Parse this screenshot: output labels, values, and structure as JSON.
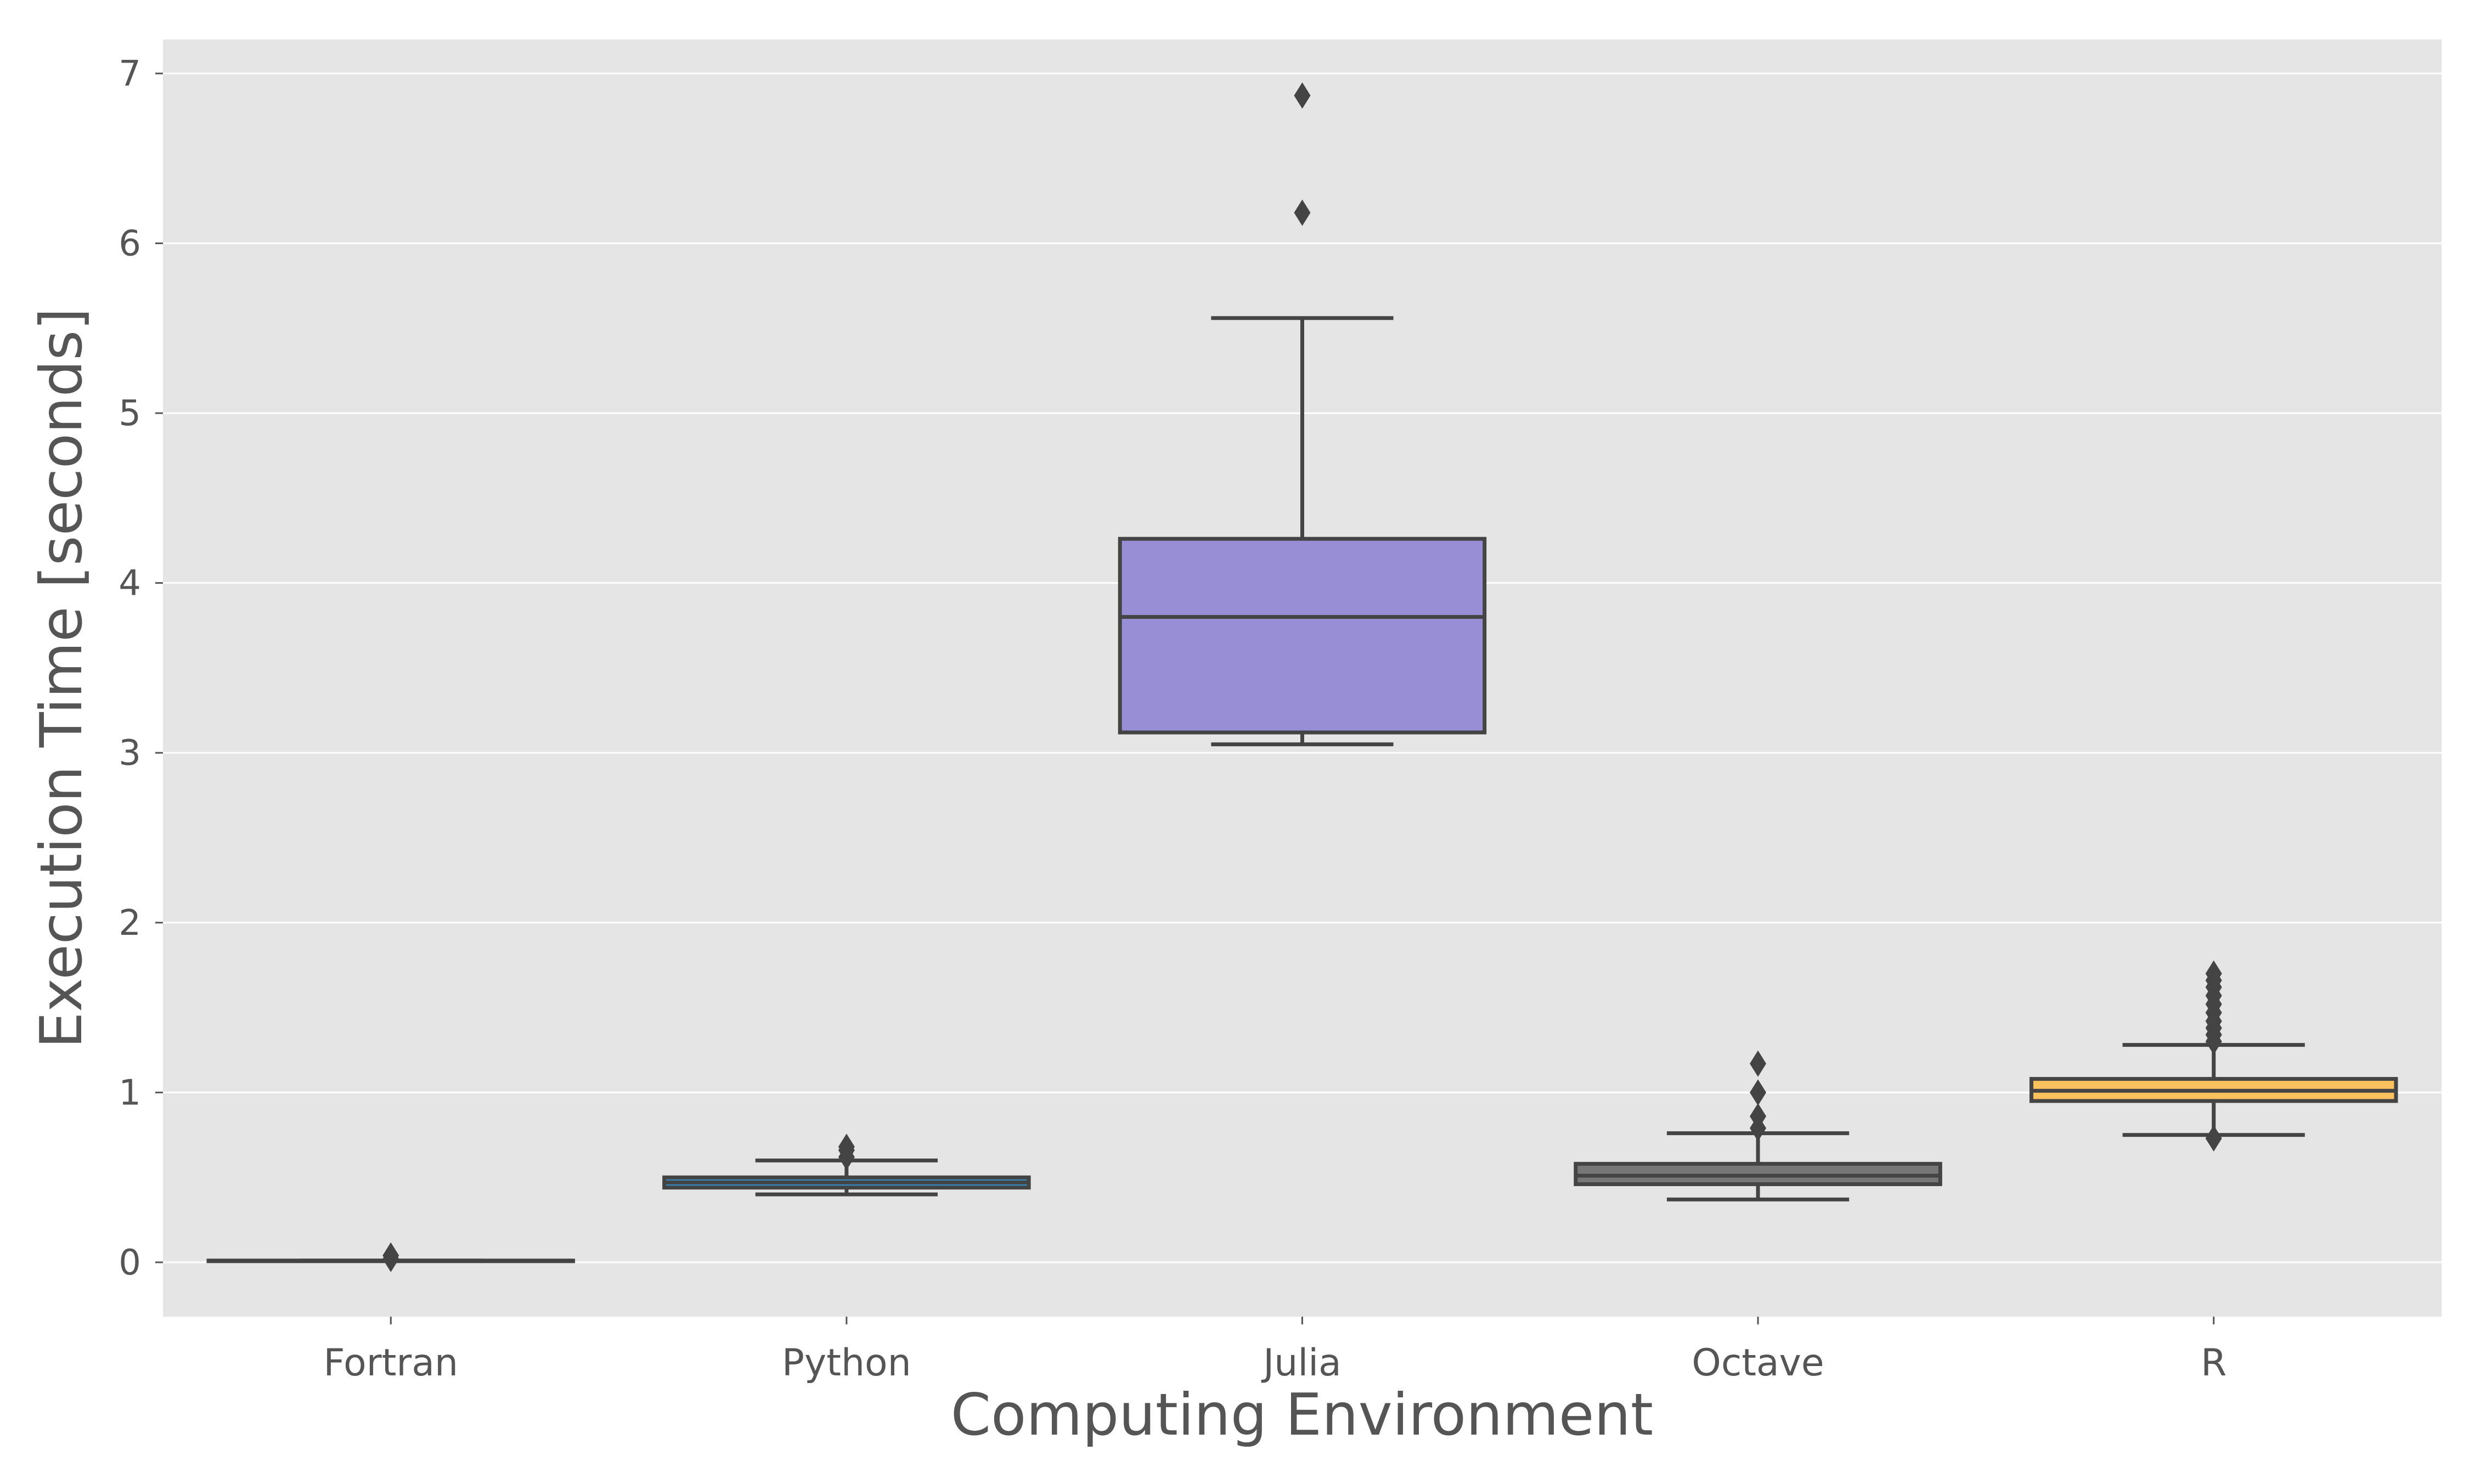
{
  "chart_data": {
    "type": "box",
    "xlabel": "Computing Environment",
    "ylabel": "Execution Time [seconds]",
    "ylim": [
      -0.32,
      7.2
    ],
    "yticks": [
      0,
      1,
      2,
      3,
      4,
      5,
      6,
      7
    ],
    "grid": true,
    "categories": [
      "Fortran",
      "Python",
      "Julia",
      "Octave",
      "R"
    ],
    "boxes": [
      {
        "name": "Fortran",
        "color": "#E24A33",
        "whisker_low": 0.01,
        "q1": 0.01,
        "median": 0.01,
        "q3": 0.01,
        "whisker_high": 0.01,
        "outliers": [
          0.04,
          0.02
        ]
      },
      {
        "name": "Python",
        "color": "#348ABD",
        "whisker_low": 0.4,
        "q1": 0.44,
        "median": 0.47,
        "q3": 0.5,
        "whisker_high": 0.6,
        "outliers": [
          0.62,
          0.66,
          0.68
        ]
      },
      {
        "name": "Julia",
        "color": "#988ED5",
        "whisker_low": 3.05,
        "q1": 3.12,
        "median": 3.8,
        "q3": 4.26,
        "whisker_high": 5.56,
        "outliers": [
          6.18,
          6.87
        ]
      },
      {
        "name": "Octave",
        "color": "#777777",
        "whisker_low": 0.37,
        "q1": 0.46,
        "median": 0.51,
        "q3": 0.58,
        "whisker_high": 0.76,
        "outliers": [
          0.79,
          0.86,
          1.0,
          1.17
        ]
      },
      {
        "name": "R",
        "color": "#FBC15E",
        "whisker_low": 0.75,
        "q1": 0.95,
        "median": 1.01,
        "q3": 1.08,
        "whisker_high": 1.28,
        "outliers": [
          0.73,
          1.3,
          1.34,
          1.38,
          1.42,
          1.47,
          1.52,
          1.57,
          1.62,
          1.66,
          1.7
        ]
      }
    ]
  }
}
